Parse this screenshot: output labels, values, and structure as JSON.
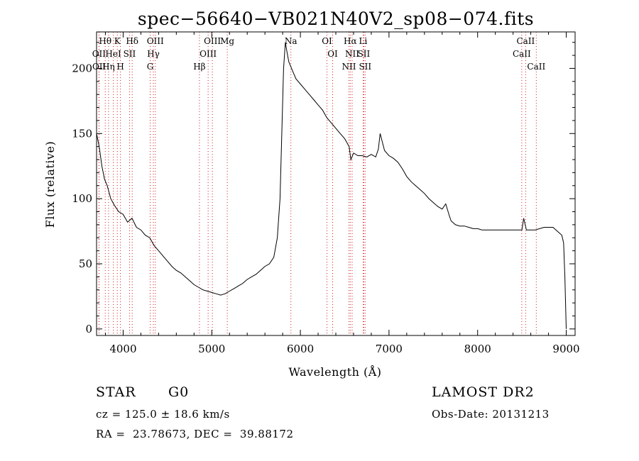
{
  "chart_data": {
    "type": "line",
    "title": "spec−56640−VB021N40V2_sp08−074.fits",
    "xlabel": "Wavelength (Å)",
    "ylabel": "Flux (relative)",
    "xlim": [
      3700,
      9100
    ],
    "ylim": [
      -5,
      228
    ],
    "xticks": [
      4000,
      5000,
      6000,
      7000,
      8000,
      9000
    ],
    "yticks": [
      0,
      50,
      100,
      150,
      200
    ],
    "series": [
      {
        "x": [
          3700,
          3730,
          3760,
          3790,
          3820,
          3860,
          3900,
          3950,
          4000,
          4050,
          4100,
          4150,
          4200,
          4250,
          4300,
          4350,
          4400,
          4450,
          4500,
          4550,
          4600,
          4650,
          4700,
          4750,
          4800,
          4850,
          4900,
          4950,
          5000,
          5050,
          5100,
          5150,
          5200,
          5250,
          5300,
          5350,
          5400,
          5450,
          5500,
          5550,
          5600,
          5650,
          5700,
          5740,
          5770,
          5790,
          5810,
          5830,
          5850,
          5870,
          5900,
          5950,
          6000,
          6050,
          6100,
          6150,
          6200,
          6250,
          6300,
          6350,
          6400,
          6450,
          6500,
          6550,
          6570,
          6600,
          6650,
          6700,
          6750,
          6800,
          6850,
          6880,
          6900,
          6950,
          7000,
          7050,
          7100,
          7150,
          7200,
          7250,
          7300,
          7350,
          7400,
          7450,
          7500,
          7550,
          7600,
          7640,
          7680,
          7700,
          7750,
          7800,
          7850,
          7900,
          7950,
          8000,
          8050,
          8100,
          8150,
          8200,
          8250,
          8300,
          8350,
          8400,
          8450,
          8500,
          8520,
          8550,
          8600,
          8650,
          8700,
          8750,
          8800,
          8850,
          8900,
          8950,
          8970,
          8985,
          9000
        ],
        "y": [
          150,
          140,
          125,
          115,
          110,
          100,
          95,
          90,
          88,
          82,
          85,
          78,
          76,
          72,
          70,
          64,
          60,
          56,
          52,
          48,
          45,
          43,
          40,
          37,
          34,
          32,
          30,
          29,
          28,
          27,
          26,
          27,
          29,
          31,
          33,
          35,
          38,
          40,
          42,
          45,
          48,
          50,
          55,
          70,
          100,
          150,
          200,
          220,
          212,
          205,
          200,
          192,
          188,
          184,
          180,
          176,
          172,
          168,
          162,
          158,
          154,
          150,
          146,
          140,
          130,
          135,
          133,
          133,
          132,
          134,
          132,
          138,
          150,
          137,
          133,
          131,
          128,
          123,
          117,
          113,
          110,
          107,
          104,
          100,
          97,
          94,
          92,
          96,
          87,
          83,
          80,
          79,
          79,
          78,
          77,
          77,
          76,
          76,
          76,
          76,
          76,
          76,
          76,
          76,
          76,
          76,
          85,
          76,
          76,
          76,
          77,
          78,
          78,
          78,
          75,
          72,
          66,
          40,
          0
        ]
      }
    ],
    "line_groups": [
      {
        "labels": [
          "Hθ",
          "OII",
          "OII"
        ],
        "x": [
          3798,
          3727,
          3729
        ]
      },
      {
        "labels": [
          "K",
          "HeI",
          "Hη"
        ],
        "x": [
          3934,
          3889,
          3835
        ]
      },
      {
        "labels": [
          "Hδ",
          "SII",
          "H"
        ],
        "x": [
          4102,
          4072,
          3969
        ]
      },
      {
        "labels": [
          "OIII",
          "Hγ",
          "G"
        ],
        "x": [
          4363,
          4341,
          4305
        ]
      },
      {
        "labels": [
          "OIII",
          "OIII",
          "Hβ",
          "Mg"
        ],
        "x": [
          5007,
          4959,
          4861,
          5175
        ]
      },
      {
        "labels": [
          "Na"
        ],
        "x": [
          5893
        ]
      },
      {
        "labels": [
          "OI",
          "OI"
        ],
        "x": [
          6300,
          6364
        ]
      },
      {
        "labels": [
          "Hα",
          "SII",
          "NII",
          "Li",
          "NII",
          "SII"
        ],
        "x": [
          6563,
          6716,
          6548,
          6708,
          6584,
          6731
        ]
      },
      {
        "labels": [
          "CaII",
          "CaII",
          "CaII"
        ],
        "x": [
          8542,
          8498,
          8662
        ]
      }
    ]
  },
  "info": {
    "object_class": "STAR",
    "subclass": "G0",
    "survey": "LAMOST DR2",
    "velocity": "cz = 125.0 ± 18.6 km/s",
    "obs_date": "Obs-Date: 20131213",
    "coords": "RA =  23.78673, DEC =  39.88172"
  }
}
